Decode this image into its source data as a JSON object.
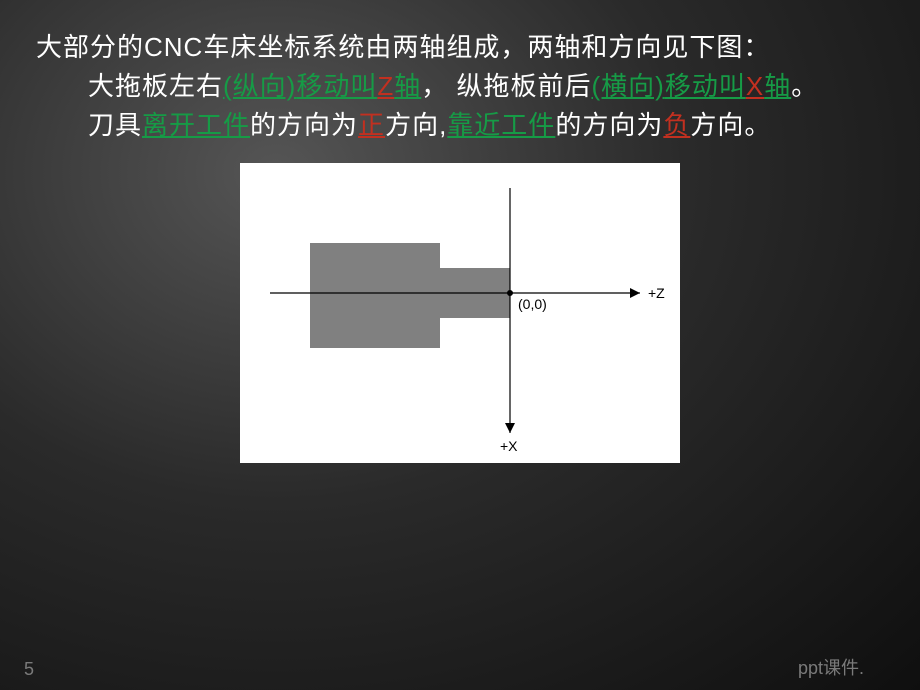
{
  "text": {
    "line1": "大部分的CNC车床坐标系统由两轴组成，两轴和方向见下图：",
    "p2_pre": "大拖板左右",
    "p2_a": "(纵向)",
    "p2_b": "移动叫",
    "p2_c": "Z",
    "p2_d": "轴",
    "p2_e": "，  纵拖板前后",
    "p2_f": "(横向)",
    "p2_g": "移动叫",
    "p2_h": "X",
    "p2_i": "轴",
    "p2_j": "。",
    "p3_a": "刀具",
    "p3_b": "离开工件",
    "p3_c": "的方向为",
    "p3_d": "正",
    "p3_e": "方向,",
    "p3_f": "靠近工件",
    "p3_g": "的方向为",
    "p3_h": "负",
    "p3_i": "方向。"
  },
  "diagram": {
    "bg": "#ffffff",
    "shape_fill": "#808080",
    "line_color": "#000000",
    "line_width": 1.2,
    "origin_label": "(0,0)",
    "z_label": "+Z",
    "x_label": "+X",
    "label_fontsize": 14,
    "font_family": "sans-serif"
  },
  "footer": {
    "page": "5",
    "text": "ppt课件."
  },
  "colors": {
    "green": "#169b46",
    "red": "#c23020",
    "white": "#ffffff",
    "grey": "#7a7a7a"
  }
}
